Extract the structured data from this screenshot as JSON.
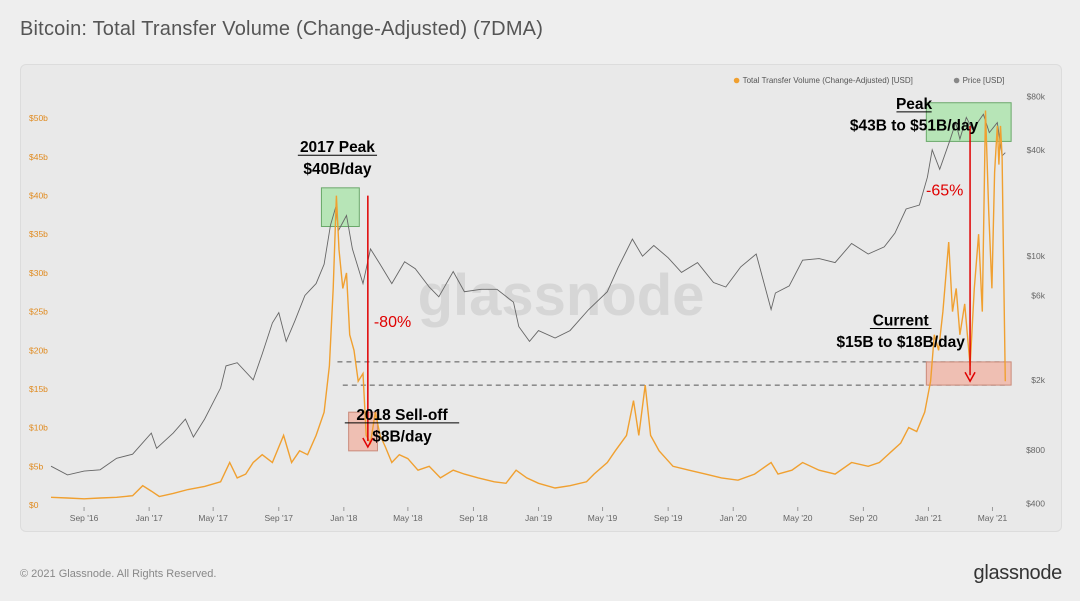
{
  "page": {
    "title": "Bitcoin: Total Transfer Volume (Change-Adjusted) (7DMA)",
    "copyright": "© 2021 Glassnode. All Rights Reserved.",
    "brand": "glassnode"
  },
  "colors": {
    "volume": "#f0a030",
    "price": "#666666",
    "green_box": "#a6e3a6",
    "red_box": "#f0b0a0",
    "arrow": "#e00000",
    "annotation_text": "#000000"
  },
  "chart_data": {
    "type": "line",
    "legend": [
      {
        "name": "Total Transfer Volume (Change-Adjusted) [USD]",
        "color": "#f0a030"
      },
      {
        "name": "Price [USD]",
        "color": "#888888"
      }
    ],
    "legend_position": "top-right",
    "watermark": "glassnode",
    "x_axis": {
      "ticks": [
        "Sep '16",
        "Jan '17",
        "May '17",
        "Sep '17",
        "Jan '18",
        "May '18",
        "Sep '18",
        "Jan '19",
        "May '19",
        "Sep '19",
        "Jan '20",
        "May '20",
        "Sep '20",
        "Jan '21",
        "May '21"
      ],
      "range": [
        "2016-07-01",
        "2021-06-01"
      ]
    },
    "y_left": {
      "ticks": [
        "$0",
        "$5b",
        "$10b",
        "$15b",
        "$20b",
        "$25b",
        "$30b",
        "$35b",
        "$40b",
        "$45b",
        "$50b"
      ],
      "range_billions": [
        0,
        53
      ]
    },
    "y_right": {
      "scale": "log",
      "ticks": [
        "$400",
        "$800",
        "$2k",
        "$6k",
        "$10k",
        "$40k",
        "$80k"
      ],
      "tick_values": [
        400,
        800,
        2000,
        6000,
        10000,
        40000,
        80000
      ]
    },
    "series": [
      {
        "name": "Total Transfer Volume (Change-Adjusted) [USD]",
        "unit": "billion USD",
        "points": [
          [
            "2016-07-01",
            1.0
          ],
          [
            "2016-08-01",
            0.9
          ],
          [
            "2016-09-01",
            0.8
          ],
          [
            "2016-10-01",
            0.9
          ],
          [
            "2016-11-01",
            1.0
          ],
          [
            "2016-12-01",
            1.2
          ],
          [
            "2016-12-20",
            2.5
          ],
          [
            "2017-01-05",
            1.8
          ],
          [
            "2017-01-20",
            1.1
          ],
          [
            "2017-02-15",
            1.5
          ],
          [
            "2017-03-15",
            2.0
          ],
          [
            "2017-04-15",
            2.4
          ],
          [
            "2017-05-15",
            3.0
          ],
          [
            "2017-06-01",
            5.5
          ],
          [
            "2017-06-15",
            3.5
          ],
          [
            "2017-07-01",
            4.0
          ],
          [
            "2017-07-15",
            5.5
          ],
          [
            "2017-08-01",
            6.5
          ],
          [
            "2017-08-20",
            5.5
          ],
          [
            "2017-09-10",
            9.0
          ],
          [
            "2017-09-25",
            5.5
          ],
          [
            "2017-10-10",
            7.0
          ],
          [
            "2017-10-25",
            6.5
          ],
          [
            "2017-11-10",
            9.0
          ],
          [
            "2017-11-25",
            12.0
          ],
          [
            "2017-12-05",
            18.0
          ],
          [
            "2017-12-12",
            28.0
          ],
          [
            "2017-12-18",
            40.0
          ],
          [
            "2017-12-23",
            33.0
          ],
          [
            "2017-12-30",
            28.0
          ],
          [
            "2018-01-06",
            30.0
          ],
          [
            "2018-01-12",
            22.0
          ],
          [
            "2018-01-20",
            20.0
          ],
          [
            "2018-01-28",
            16.0
          ],
          [
            "2018-02-06",
            17.0
          ],
          [
            "2018-02-12",
            9.0
          ],
          [
            "2018-02-20",
            8.0
          ],
          [
            "2018-03-01",
            12.0
          ],
          [
            "2018-03-10",
            9.0
          ],
          [
            "2018-03-20",
            7.5
          ],
          [
            "2018-04-01",
            5.5
          ],
          [
            "2018-04-15",
            6.5
          ],
          [
            "2018-05-01",
            6.0
          ],
          [
            "2018-05-20",
            4.5
          ],
          [
            "2018-06-10",
            5.0
          ],
          [
            "2018-07-01",
            3.5
          ],
          [
            "2018-07-25",
            4.5
          ],
          [
            "2018-08-15",
            4.0
          ],
          [
            "2018-09-10",
            3.5
          ],
          [
            "2018-10-10",
            3.0
          ],
          [
            "2018-11-01",
            2.8
          ],
          [
            "2018-11-20",
            4.5
          ],
          [
            "2018-12-10",
            3.5
          ],
          [
            "2019-01-01",
            2.8
          ],
          [
            "2019-02-01",
            2.2
          ],
          [
            "2019-03-01",
            2.5
          ],
          [
            "2019-04-01",
            3.0
          ],
          [
            "2019-04-15",
            4.0
          ],
          [
            "2019-05-10",
            5.5
          ],
          [
            "2019-05-25",
            7.0
          ],
          [
            "2019-06-15",
            9.0
          ],
          [
            "2019-06-28",
            13.5
          ],
          [
            "2019-07-08",
            9.0
          ],
          [
            "2019-07-20",
            15.5
          ],
          [
            "2019-07-30",
            9.0
          ],
          [
            "2019-08-15",
            7.0
          ],
          [
            "2019-09-10",
            5.0
          ],
          [
            "2019-10-10",
            4.5
          ],
          [
            "2019-11-10",
            4.0
          ],
          [
            "2019-12-10",
            3.5
          ],
          [
            "2020-01-10",
            3.2
          ],
          [
            "2020-02-10",
            4.0
          ],
          [
            "2020-03-12",
            5.5
          ],
          [
            "2020-03-25",
            4.0
          ],
          [
            "2020-04-20",
            4.5
          ],
          [
            "2020-05-10",
            5.5
          ],
          [
            "2020-06-10",
            4.5
          ],
          [
            "2020-07-10",
            4.0
          ],
          [
            "2020-08-10",
            5.5
          ],
          [
            "2020-09-10",
            5.0
          ],
          [
            "2020-10-01",
            5.5
          ],
          [
            "2020-10-25",
            7.0
          ],
          [
            "2020-11-10",
            8.0
          ],
          [
            "2020-11-25",
            10.0
          ],
          [
            "2020-12-10",
            9.5
          ],
          [
            "2020-12-25",
            12.0
          ],
          [
            "2021-01-05",
            16.0
          ],
          [
            "2021-01-12",
            22.0
          ],
          [
            "2021-01-20",
            20.0
          ],
          [
            "2021-01-28",
            25.0
          ],
          [
            "2021-02-08",
            34.0
          ],
          [
            "2021-02-15",
            25.0
          ],
          [
            "2021-02-22",
            28.0
          ],
          [
            "2021-03-01",
            22.0
          ],
          [
            "2021-03-10",
            26.0
          ],
          [
            "2021-03-20",
            18.0
          ],
          [
            "2021-03-28",
            28.0
          ],
          [
            "2021-04-05",
            35.0
          ],
          [
            "2021-04-12",
            25.0
          ],
          [
            "2021-04-18",
            51.0
          ],
          [
            "2021-04-24",
            38.0
          ],
          [
            "2021-04-30",
            28.0
          ],
          [
            "2021-05-05",
            43.0
          ],
          [
            "2021-05-10",
            49.0
          ],
          [
            "2021-05-13",
            44.0
          ],
          [
            "2021-05-16",
            49.0
          ],
          [
            "2021-05-19",
            45.0
          ],
          [
            "2021-05-22",
            30.0
          ],
          [
            "2021-05-25",
            16.0
          ]
        ]
      },
      {
        "name": "Price [USD]",
        "unit": "USD",
        "points": [
          [
            "2016-07-01",
            650
          ],
          [
            "2016-08-01",
            580
          ],
          [
            "2016-09-01",
            610
          ],
          [
            "2016-10-01",
            620
          ],
          [
            "2016-11-01",
            720
          ],
          [
            "2016-12-01",
            760
          ],
          [
            "2017-01-05",
            1000
          ],
          [
            "2017-01-15",
            820
          ],
          [
            "2017-02-15",
            1000
          ],
          [
            "2017-03-10",
            1200
          ],
          [
            "2017-03-25",
            950
          ],
          [
            "2017-04-15",
            1200
          ],
          [
            "2017-05-15",
            1800
          ],
          [
            "2017-05-25",
            2400
          ],
          [
            "2017-06-15",
            2500
          ],
          [
            "2017-07-15",
            2000
          ],
          [
            "2017-08-01",
            2800
          ],
          [
            "2017-08-20",
            4200
          ],
          [
            "2017-09-01",
            4800
          ],
          [
            "2017-09-15",
            3300
          ],
          [
            "2017-10-01",
            4300
          ],
          [
            "2017-10-20",
            6000
          ],
          [
            "2017-11-10",
            7000
          ],
          [
            "2017-11-25",
            9000
          ],
          [
            "2017-12-07",
            15000
          ],
          [
            "2017-12-17",
            19000
          ],
          [
            "2017-12-22",
            14000
          ],
          [
            "2018-01-06",
            17000
          ],
          [
            "2018-01-17",
            11000
          ],
          [
            "2018-02-06",
            7000
          ],
          [
            "2018-02-20",
            11000
          ],
          [
            "2018-03-10",
            9000
          ],
          [
            "2018-04-01",
            7000
          ],
          [
            "2018-04-25",
            9300
          ],
          [
            "2018-05-15",
            8500
          ],
          [
            "2018-06-10",
            6700
          ],
          [
            "2018-06-28",
            5900
          ],
          [
            "2018-07-25",
            8200
          ],
          [
            "2018-08-15",
            6300
          ],
          [
            "2018-09-15",
            6500
          ],
          [
            "2018-10-15",
            6500
          ],
          [
            "2018-11-15",
            5500
          ],
          [
            "2018-11-25",
            4000
          ],
          [
            "2018-12-15",
            3300
          ],
          [
            "2019-01-01",
            3800
          ],
          [
            "2019-02-01",
            3450
          ],
          [
            "2019-03-01",
            3800
          ],
          [
            "2019-04-05",
            5000
          ],
          [
            "2019-05-10",
            6300
          ],
          [
            "2019-05-30",
            8600
          ],
          [
            "2019-06-26",
            12500
          ],
          [
            "2019-07-15",
            10000
          ],
          [
            "2019-08-05",
            11500
          ],
          [
            "2019-09-01",
            9800
          ],
          [
            "2019-09-26",
            8100
          ],
          [
            "2019-10-26",
            9200
          ],
          [
            "2019-11-25",
            7100
          ],
          [
            "2019-12-18",
            6700
          ],
          [
            "2020-01-15",
            8700
          ],
          [
            "2020-02-13",
            10300
          ],
          [
            "2020-03-12",
            5000
          ],
          [
            "2020-03-20",
            6200
          ],
          [
            "2020-04-15",
            6800
          ],
          [
            "2020-05-10",
            9500
          ],
          [
            "2020-06-10",
            9700
          ],
          [
            "2020-07-10",
            9200
          ],
          [
            "2020-08-10",
            11800
          ],
          [
            "2020-09-10",
            10300
          ],
          [
            "2020-10-10",
            11300
          ],
          [
            "2020-10-30",
            13500
          ],
          [
            "2020-11-20",
            18500
          ],
          [
            "2020-12-15",
            19500
          ],
          [
            "2020-12-30",
            28000
          ],
          [
            "2021-01-08",
            40000
          ],
          [
            "2021-01-22",
            31000
          ],
          [
            "2021-02-10",
            45000
          ],
          [
            "2021-02-21",
            57000
          ],
          [
            "2021-03-01",
            46000
          ],
          [
            "2021-03-13",
            61000
          ],
          [
            "2021-03-25",
            52000
          ],
          [
            "2021-04-14",
            63500
          ],
          [
            "2021-04-25",
            50000
          ],
          [
            "2021-05-10",
            57000
          ],
          [
            "2021-05-19",
            37000
          ],
          [
            "2021-05-25",
            38500
          ]
        ]
      }
    ],
    "annotations": [
      {
        "id": "peak2017",
        "line1": "2017 Peak",
        "line2": "$40B/day",
        "box": "green",
        "date_from": "2017-11-20",
        "date_to": "2018-01-30",
        "y_from": 36,
        "y_to": 41
      },
      {
        "id": "selloff2018",
        "line1": "2018 Sell-off",
        "line2": "$8B/day",
        "box": "red",
        "date_from": "2018-01-10",
        "date_to": "2018-03-05",
        "y_from": 7,
        "y_to": 12
      },
      {
        "id": "peak2021",
        "line1": "Peak",
        "line2": "$43B to $51B/day",
        "box": "green",
        "date_from": "2020-12-28",
        "date_to": "2021-06-05",
        "y_from": 47,
        "y_to": 52
      },
      {
        "id": "current2021",
        "line1": "Current",
        "line2": "$15B to $18B/day",
        "box": "red",
        "date_from": "2020-12-28",
        "date_to": "2021-06-05",
        "y_from": 15.5,
        "y_to": 18.5
      }
    ],
    "drops": [
      {
        "label": "-80%",
        "date": "2018-02-15",
        "y_from": 40,
        "y_to": 7.5
      },
      {
        "label": "-65%",
        "date": "2021-03-20",
        "y_from": 49,
        "y_to": 16
      }
    ],
    "reference_lines": [
      {
        "y": 18.5,
        "date_from": "2017-12-20",
        "date_to": "2021-05-25"
      },
      {
        "y": 15.5,
        "date_from": "2017-12-30",
        "date_to": "2021-05-25"
      }
    ]
  }
}
